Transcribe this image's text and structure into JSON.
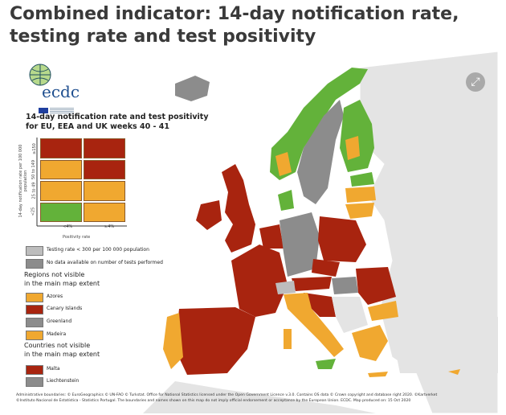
{
  "title": "Combined indicator: 14-day notification rate, testing rate and test positivity",
  "logo": {
    "text": "ecdc",
    "sub": "EUROPEAN CENTRE FOR DISEASE PREVENTION AND CONTROL"
  },
  "legend": {
    "title_line1": "14-day notification rate and test positivity",
    "title_line2": "for EU, EEA and UK weeks 40 - 41",
    "y_axis_label": "14-day notification rate per 100 000 population",
    "y_ticks": [
      "≥150",
      "50 to 149",
      "25 to 49",
      "<25"
    ],
    "x_axis_label": "Positivity rate",
    "x_ticks": [
      "<4%",
      "≥4%"
    ],
    "matrix": [
      [
        "#a8240f",
        "#a8240f"
      ],
      [
        "#f0a830",
        "#a8240f"
      ],
      [
        "#f0a830",
        "#f0a830"
      ],
      [
        "#63b23a",
        "#f0a830"
      ]
    ],
    "testing_low": "Testing rate < 300 per 100 000 population",
    "no_data": "No data available on number of tests performed",
    "regions_heading_1": "Regions not visible",
    "regions_heading_2": "in the main map extent",
    "regions": [
      {
        "label": "Azores",
        "color": "#f0a830"
      },
      {
        "label": "Canary Islands",
        "color": "#a8240f"
      },
      {
        "label": "Greenland",
        "color": "#8c8c8c"
      },
      {
        "label": "Madeira",
        "color": "#f0a830"
      }
    ],
    "countries_heading_1": "Countries not visible",
    "countries_heading_2": "in the main map extent",
    "countries": [
      {
        "label": "Malta",
        "color": "#a8240f"
      },
      {
        "label": "Liechtenstein",
        "color": "#8c8c8c"
      }
    ]
  },
  "colors": {
    "red": "#a8240f",
    "orange": "#f0a830",
    "green": "#63b23a",
    "grey_low": "#bdbdbd",
    "grey_nodata": "#8c8c8c",
    "nonEU": "#e4e4e4"
  },
  "expand_icon": "expand-icon",
  "credits_line1": "Administrative boundaries: © EuroGeographics © UN-FAO © Turkstat. Office for National Statistics licensed under the Open Government Licence v.3.0. Contains OS data © Crown copyright and database right 2020. ©Kartverket",
  "credits_line2": "©Instituto Nacional de Estatística - Statistics Portugal. The boundaries and names shown on this map do not imply official endorsement or acceptance by the European Union. ECDC. Map produced on: 15 Oct 2020"
}
